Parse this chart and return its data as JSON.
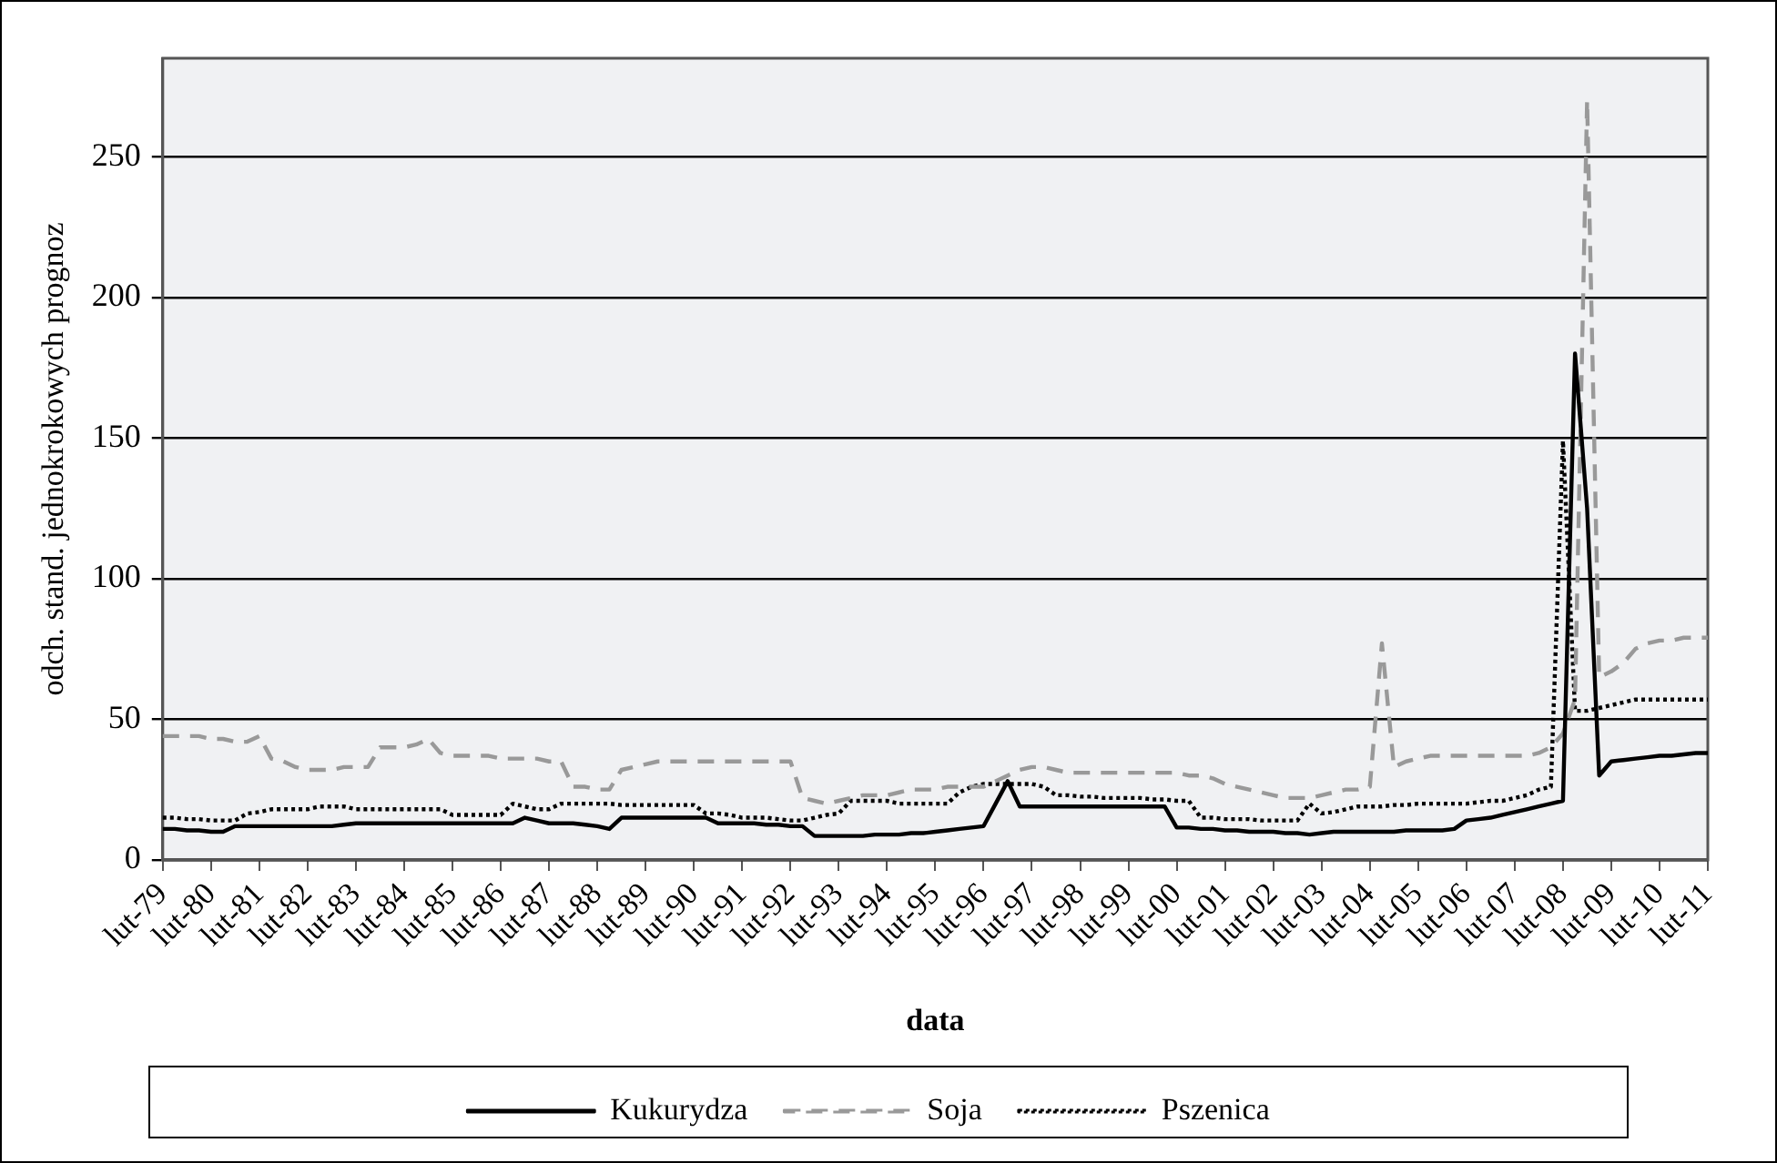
{
  "chart_data": {
    "type": "line",
    "xlabel": "data",
    "ylabel": "odch. stand. jednokrokowych prognoz",
    "categories": [
      "lut-79",
      null,
      null,
      null,
      "lut-80",
      null,
      null,
      null,
      "lut-81",
      null,
      null,
      null,
      "lut-82",
      null,
      null,
      null,
      "lut-83",
      null,
      null,
      null,
      "lut-84",
      null,
      null,
      null,
      "lut-85",
      null,
      null,
      null,
      "lut-86",
      null,
      null,
      null,
      "lut-87",
      null,
      null,
      null,
      "lut-88",
      null,
      null,
      null,
      "lut-89",
      null,
      null,
      null,
      "lut-90",
      null,
      null,
      null,
      "lut-91",
      null,
      null,
      null,
      "lut-92",
      null,
      null,
      null,
      "lut-93",
      null,
      null,
      null,
      "lut-94",
      null,
      null,
      null,
      "lut-95",
      null,
      null,
      null,
      "lut-96",
      null,
      null,
      null,
      "lut-97",
      null,
      null,
      null,
      "lut-98",
      null,
      null,
      null,
      "lut-99",
      null,
      null,
      null,
      "lut-00",
      null,
      null,
      null,
      "lut-01",
      null,
      null,
      null,
      "lut-02",
      null,
      null,
      null,
      "lut-03",
      null,
      null,
      null,
      "lut-04",
      null,
      null,
      null,
      "lut-05",
      null,
      null,
      null,
      "lut-06",
      null,
      null,
      null,
      "lut-07",
      null,
      null,
      null,
      "lut-08",
      null,
      null,
      null,
      "lut-09",
      null,
      null,
      null,
      "lut-10",
      null,
      null,
      null,
      "lut-11"
    ],
    "ylim": [
      0,
      285
    ],
    "yticks": [
      0,
      50,
      100,
      150,
      200,
      250
    ],
    "grid": "y",
    "legend": "bottom",
    "marker": "none",
    "series": [
      {
        "name": "Kukurydza",
        "color": "#000000",
        "line_style": "solid",
        "values": [
          11,
          11,
          10.5,
          10.5,
          10,
          10,
          12,
          12,
          12,
          12,
          12,
          12,
          12,
          12,
          12,
          12.5,
          13,
          13,
          13,
          13,
          13,
          13,
          13,
          13,
          13,
          13,
          13,
          13,
          13,
          13,
          15,
          14,
          13,
          13,
          13,
          12.5,
          12,
          11,
          15,
          15,
          15,
          15,
          15,
          15,
          15,
          15,
          13,
          13,
          13,
          13,
          12.5,
          12.5,
          12,
          12,
          8.5,
          8.5,
          8.5,
          8.5,
          8.5,
          9,
          9,
          9,
          9.5,
          9.5,
          10,
          10.5,
          11,
          11.5,
          12,
          20,
          28,
          19,
          19,
          19,
          19,
          19,
          19,
          19,
          19,
          19,
          19,
          19,
          19,
          19,
          11.5,
          11.5,
          11,
          11,
          10.5,
          10.5,
          10,
          10,
          10,
          9.5,
          9.5,
          9,
          9.5,
          10,
          10,
          10,
          10,
          10,
          10,
          10.5,
          10.5,
          10.5,
          10.5,
          11,
          14,
          14.5,
          15,
          16,
          17,
          18,
          19,
          20,
          21,
          180,
          125,
          30,
          35,
          35.5,
          36,
          36.5,
          37,
          37,
          37.5,
          38,
          38
        ]
      },
      {
        "name": "Soja",
        "color": "#999999",
        "line_style": "dashed",
        "values": [
          44,
          44,
          44,
          44,
          43,
          43,
          42,
          42,
          44,
          36,
          35,
          33,
          32,
          32,
          32,
          33,
          33,
          33,
          40,
          40,
          40,
          41,
          43,
          38,
          37,
          37,
          37,
          37,
          36,
          36,
          36,
          36,
          35,
          35,
          26,
          26,
          25,
          25,
          32,
          33,
          34,
          35,
          35,
          35,
          35,
          35,
          35,
          35,
          35,
          35,
          35,
          35,
          35,
          22,
          21,
          20,
          21,
          22,
          23,
          23,
          23,
          24,
          25,
          25,
          25,
          26,
          26,
          26,
          26,
          28,
          30,
          32,
          33,
          33,
          32,
          31,
          31,
          31,
          31,
          31,
          31,
          31,
          31,
          31,
          31,
          30,
          30,
          29,
          27,
          26,
          25,
          24,
          23,
          22,
          22,
          22,
          23,
          24,
          25,
          25,
          26,
          77,
          33,
          35,
          36,
          37,
          37,
          37,
          37,
          37,
          37,
          37,
          37,
          37,
          38,
          40,
          45,
          57,
          270,
          65,
          67,
          70,
          75,
          77,
          78,
          78,
          79,
          79,
          79
        ]
      },
      {
        "name": "Pszenica",
        "color": "#000000",
        "line_style": "dotted",
        "values": [
          15,
          15,
          14.5,
          14.5,
          14,
          14,
          14,
          16.5,
          17,
          18,
          18,
          18,
          18,
          19,
          19,
          19,
          18,
          18,
          18,
          18,
          18,
          18,
          18,
          18,
          16,
          16,
          16,
          16,
          16,
          20,
          19,
          18,
          18,
          20,
          20,
          20,
          20,
          20,
          19.5,
          19.5,
          19.5,
          19.5,
          19.5,
          19.5,
          19.5,
          16.5,
          16.5,
          16,
          15,
          15,
          15,
          14.5,
          14,
          14,
          15,
          16,
          16.5,
          21,
          21,
          21,
          21,
          20,
          20,
          20,
          20,
          20,
          24,
          26,
          27,
          27,
          27,
          27,
          27,
          26,
          23,
          23,
          22.5,
          22.5,
          22,
          22,
          22,
          22,
          21.5,
          21.5,
          21,
          21,
          15,
          15,
          14.5,
          14.5,
          14.5,
          14,
          14,
          14,
          14,
          20,
          16.5,
          17,
          18,
          19,
          19,
          19,
          19.5,
          19.5,
          20,
          20,
          20,
          20,
          20,
          20.5,
          21,
          21,
          22,
          23,
          25,
          26,
          149,
          53,
          53,
          54,
          55,
          56,
          57,
          57,
          57,
          57,
          57,
          57,
          57
        ]
      }
    ]
  }
}
